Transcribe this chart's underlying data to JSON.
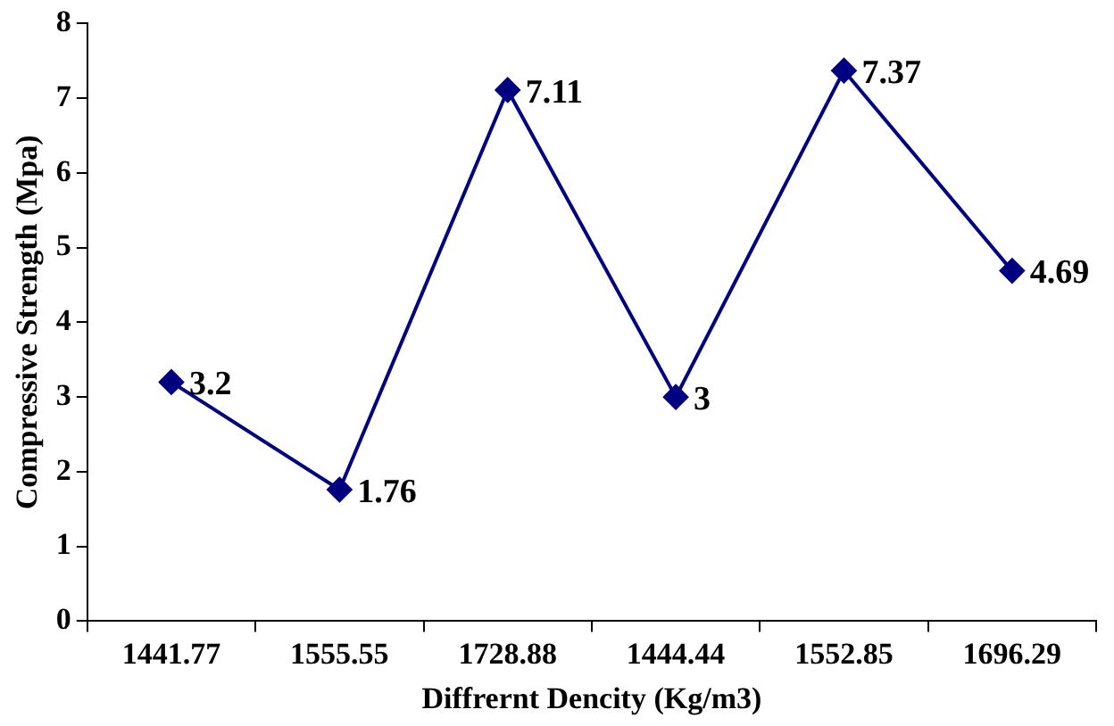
{
  "chart_data": {
    "type": "line",
    "categories": [
      "1441.77",
      "1555.55",
      "1728.88",
      "1444.44",
      "1552.85",
      "1696.29"
    ],
    "values": [
      3.2,
      1.76,
      7.11,
      3,
      7.37,
      4.69
    ],
    "color": "#000080",
    "xlabel": "Diffrernt Dencity (Kg/m3)",
    "ylabel": "Compressive Strength (Mpa)",
    "ylim": [
      0,
      8
    ],
    "yticks": [
      0,
      1,
      2,
      3,
      4,
      5,
      6,
      7,
      8
    ],
    "marker": "diamond",
    "line_style": "solid",
    "data_labels": true,
    "grid": false,
    "legend": false
  }
}
